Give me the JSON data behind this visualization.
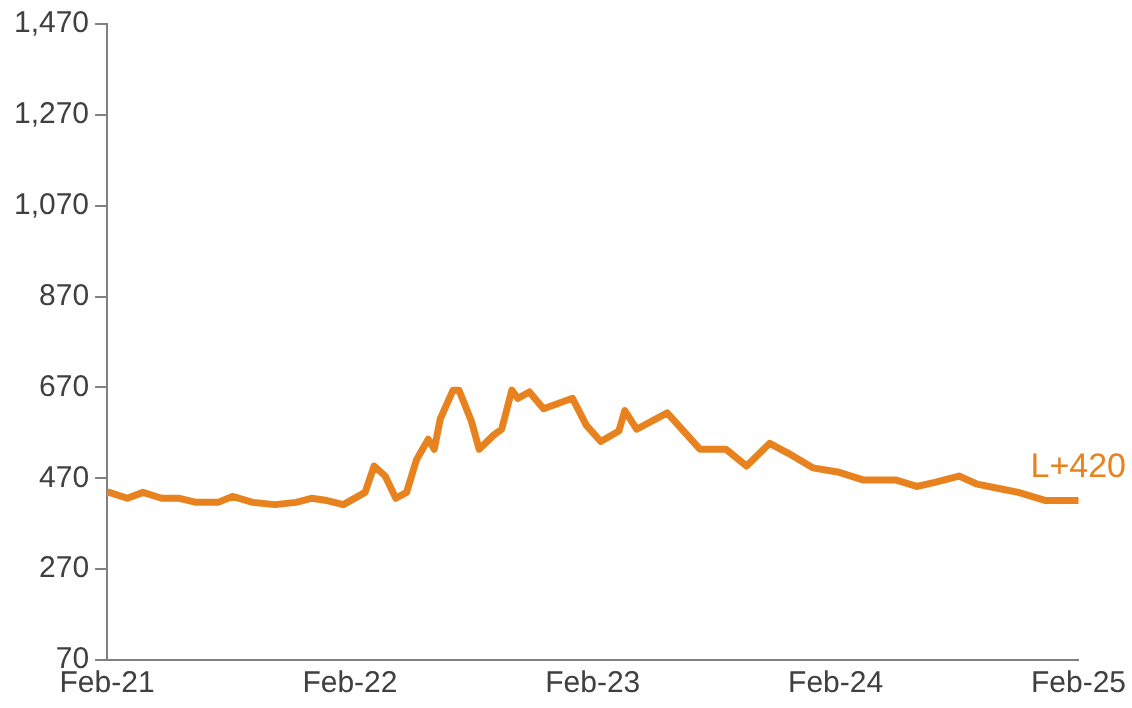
{
  "chart_data": {
    "type": "line",
    "x": [
      "2021-02-04",
      "2021-03-01",
      "2021-03-25",
      "2021-04-22",
      "2021-05-19",
      "2021-06-13",
      "2021-07-16",
      "2021-08-07",
      "2021-09-07",
      "2021-10-10",
      "2021-11-11",
      "2021-12-04",
      "2021-12-28",
      "2022-01-22",
      "2022-02-22",
      "2022-03-07",
      "2022-03-24",
      "2022-04-09",
      "2022-04-25",
      "2022-05-10",
      "2022-05-28",
      "2022-06-06",
      "2022-06-15",
      "2022-07-04",
      "2022-07-13",
      "2022-08-01",
      "2022-08-13",
      "2022-09-04",
      "2022-09-16",
      "2022-10-01",
      "2022-10-10",
      "2022-10-28",
      "2022-11-18",
      "2023-01-01",
      "2023-01-22",
      "2023-02-12",
      "2023-03-10",
      "2023-03-19",
      "2023-04-06",
      "2023-05-22",
      "2023-07-10",
      "2023-08-19",
      "2023-09-19",
      "2023-10-24",
      "2023-11-21",
      "2023-12-28",
      "2024-02-04",
      "2024-03-13",
      "2024-05-01",
      "2024-06-01",
      "2024-06-28",
      "2024-08-04",
      "2024-09-01",
      "2024-10-01",
      "2024-11-02",
      "2024-12-13",
      "2025-02-01"
    ],
    "series": [
      {
        "color": "#e8821e",
        "values": [
          439,
          426,
          439,
          426,
          426,
          417,
          417,
          430,
          417,
          412,
          417,
          426,
          421,
          412,
          439,
          497,
          475,
          426,
          439,
          511,
          556,
          534,
          601,
          664,
          664,
          596,
          534,
          565,
          578,
          664,
          646,
          660,
          623,
          646,
          587,
          551,
          574,
          619,
          578,
          614,
          534,
          534,
          497,
          547,
          525,
          493,
          484,
          466,
          466,
          452,
          461,
          475,
          457,
          448,
          439,
          421,
          421
        ]
      }
    ],
    "xlim": [
      "2021-02",
      "2025-02"
    ],
    "xticks": [
      {
        "value": "2021-02",
        "label": "Feb-21"
      },
      {
        "value": "2022-02",
        "label": "Feb-22"
      },
      {
        "value": "2023-02",
        "label": "Feb-23"
      },
      {
        "value": "2024-02",
        "label": "Feb-24"
      },
      {
        "value": "2025-02",
        "label": "Feb-25"
      }
    ],
    "ylim": [
      70,
      1470
    ],
    "yticks": [
      70,
      270,
      470,
      670,
      870,
      {
        "value": 1070,
        "label": "1,070"
      },
      {
        "value": 1270,
        "label": "1,270"
      },
      {
        "value": 1470,
        "label": "1,470"
      }
    ],
    "annotations": [
      {
        "text": "L+420",
        "x": "2025-02-01",
        "y": 421
      }
    ],
    "grid": false,
    "legend": false,
    "marker": "none",
    "line_style": "solid"
  }
}
